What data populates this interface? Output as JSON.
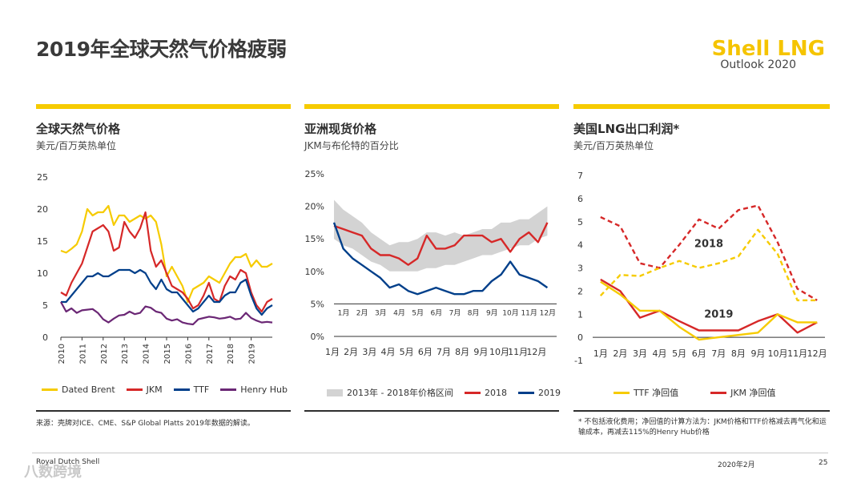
{
  "page": {
    "title": "2019年全球天然气价格疲弱",
    "logo_main": "Shell LNG",
    "logo_sub": "Outlook 2020",
    "footer_left": "Royal Dutch Shell",
    "footer_date": "2020年2月",
    "footer_page": "25",
    "watermark": "八数跨境"
  },
  "colors": {
    "yellow": "#f6cb00",
    "red": "#d62828",
    "blue": "#003f8a",
    "purple": "#6b2775",
    "gray_band": "#d3d3d3"
  },
  "chart_data": [
    {
      "id": "global",
      "type": "line",
      "title": "全球天然气价格",
      "subtitle": "美元/百万英热单位",
      "ylim": [
        0,
        25
      ],
      "yticks": [
        "0",
        "5",
        "10",
        "15",
        "20",
        "25"
      ],
      "xticks": [
        "2010",
        "2011",
        "2012",
        "2013",
        "2014",
        "2015",
        "2016",
        "2017",
        "2018",
        "2019"
      ],
      "x": [
        2010.0,
        2010.25,
        2010.5,
        2010.75,
        2011.0,
        2011.25,
        2011.5,
        2011.75,
        2012.0,
        2012.25,
        2012.5,
        2012.75,
        2013.0,
        2013.25,
        2013.5,
        2013.75,
        2014.0,
        2014.25,
        2014.5,
        2014.75,
        2015.0,
        2015.25,
        2015.5,
        2015.75,
        2016.0,
        2016.25,
        2016.5,
        2016.75,
        2017.0,
        2017.25,
        2017.5,
        2017.75,
        2018.0,
        2018.25,
        2018.5,
        2018.75,
        2019.0,
        2019.25,
        2019.5,
        2019.75,
        2020.0
      ],
      "series": [
        {
          "name": "Dated Brent",
          "color": "#f6cb00",
          "values": [
            13.5,
            13.2,
            13.8,
            14.5,
            16.5,
            20.0,
            19.0,
            19.5,
            19.5,
            20.5,
            17.5,
            19.0,
            19.0,
            18.0,
            18.5,
            19.0,
            18.5,
            19.0,
            18.0,
            14.5,
            9.5,
            11.0,
            9.5,
            8.0,
            5.5,
            7.5,
            8.0,
            8.5,
            9.5,
            9.0,
            8.5,
            10.0,
            11.5,
            12.5,
            12.5,
            13.0,
            11.0,
            12.0,
            11.0,
            11.0,
            11.5
          ]
        },
        {
          "name": "JKM",
          "color": "#d62828",
          "values": [
            7.0,
            6.5,
            8.5,
            10.0,
            11.5,
            14.0,
            16.5,
            17.0,
            17.5,
            16.5,
            13.5,
            14.0,
            18.0,
            16.5,
            15.5,
            17.0,
            19.5,
            13.5,
            11.0,
            12.0,
            10.0,
            8.0,
            7.5,
            7.0,
            6.0,
            4.5,
            5.0,
            6.5,
            8.5,
            6.0,
            5.5,
            8.0,
            9.5,
            9.0,
            10.5,
            10.0,
            7.0,
            5.0,
            4.0,
            5.5,
            6.0
          ]
        },
        {
          "name": "TTF",
          "color": "#003f8a",
          "values": [
            5.5,
            5.5,
            6.5,
            7.5,
            8.5,
            9.5,
            9.5,
            10.0,
            9.5,
            9.5,
            10.0,
            10.5,
            10.5,
            10.5,
            10.0,
            10.5,
            10.0,
            8.5,
            7.5,
            9.0,
            7.5,
            7.0,
            7.0,
            6.0,
            5.0,
            4.0,
            4.5,
            5.5,
            6.5,
            5.5,
            5.5,
            6.5,
            7.0,
            7.0,
            8.5,
            9.0,
            6.5,
            4.5,
            3.5,
            4.5,
            5.0
          ]
        },
        {
          "name": "Henry Hub",
          "color": "#6b2775",
          "values": [
            5.5,
            4.0,
            4.5,
            3.8,
            4.2,
            4.3,
            4.4,
            3.8,
            2.8,
            2.3,
            2.9,
            3.4,
            3.5,
            4.0,
            3.6,
            3.8,
            4.8,
            4.6,
            4.0,
            3.8,
            2.9,
            2.6,
            2.8,
            2.3,
            2.1,
            2.0,
            2.8,
            3.0,
            3.2,
            3.1,
            2.9,
            3.0,
            3.2,
            2.8,
            2.9,
            3.8,
            3.0,
            2.6,
            2.3,
            2.4,
            2.3
          ]
        }
      ]
    },
    {
      "id": "asia",
      "type": "line",
      "title": "亚洲现货价格",
      "subtitle": "JKM与布伦特的百分比",
      "ylim": [
        0,
        25
      ],
      "yticks": [
        "0%",
        "5%",
        "10%",
        "15%",
        "20%",
        "25%"
      ],
      "xticks_inner": [
        "1月",
        "2月",
        "3月",
        "4月",
        "5月",
        "6月",
        "7月",
        "8月",
        "9月",
        "10月",
        "11月",
        "12月"
      ],
      "xticks_outer": [
        "1月",
        "2月",
        "3月",
        "4月",
        "5月",
        "6月",
        "7月",
        "8月",
        "9月",
        "10月",
        "11月",
        "12月"
      ],
      "x": [
        1,
        1.5,
        2,
        2.5,
        3,
        3.5,
        4,
        4.5,
        5,
        5.5,
        6,
        6.5,
        7,
        7.5,
        8,
        8.5,
        9,
        9.5,
        10,
        10.5,
        11,
        11.5,
        12,
        12.5
      ],
      "band_upper": [
        21.0,
        19.5,
        18.5,
        17.5,
        16.0,
        15.0,
        14.0,
        14.5,
        14.5,
        15.0,
        16.0,
        16.0,
        15.5,
        16.0,
        15.5,
        16.0,
        16.5,
        16.5,
        17.5,
        17.5,
        18.0,
        18.0,
        19.0,
        20.0
      ],
      "band_lower": [
        15.0,
        14.0,
        13.5,
        12.5,
        11.5,
        11.0,
        10.0,
        10.0,
        10.0,
        10.0,
        10.5,
        10.5,
        11.0,
        11.0,
        11.5,
        12.0,
        12.5,
        12.5,
        13.0,
        13.5,
        14.0,
        14.0,
        15.0,
        15.5
      ],
      "series": [
        {
          "name": "2018",
          "color": "#d62828",
          "values": [
            17.0,
            16.5,
            16.0,
            15.5,
            13.5,
            12.5,
            12.5,
            12.0,
            11.0,
            12.0,
            15.5,
            13.5,
            13.5,
            14.0,
            15.5,
            15.5,
            15.5,
            14.5,
            15.0,
            13.0,
            15.0,
            16.0,
            14.5,
            17.5
          ]
        },
        {
          "name": "2019",
          "color": "#003f8a",
          "values": [
            17.5,
            13.5,
            12.0,
            11.0,
            10.0,
            9.0,
            7.5,
            8.0,
            7.0,
            6.5,
            7.0,
            7.5,
            7.0,
            6.5,
            6.5,
            7.0,
            7.0,
            8.5,
            9.5,
            11.5,
            9.5,
            9.0,
            8.5,
            7.5
          ]
        }
      ],
      "legend_band": "2013年 - 2018年价格区间"
    },
    {
      "id": "us",
      "type": "line",
      "title": "美国LNG出口利润*",
      "subtitle": "美元/百万英热单位",
      "ylim": [
        -1,
        7
      ],
      "yticks": [
        "-1",
        "0",
        "1",
        "2",
        "3",
        "4",
        "5",
        "6",
        "7"
      ],
      "xticks": [
        "1月",
        "2月",
        "3月",
        "4月",
        "5月",
        "6月",
        "7月",
        "8月",
        "9月",
        "10月",
        "11月",
        "12月"
      ],
      "x": [
        1,
        2,
        3,
        4,
        5,
        6,
        7,
        8,
        9,
        10,
        11,
        12
      ],
      "series": [
        {
          "name": "JKM 2018",
          "color": "#d62828",
          "dash": true,
          "values": [
            5.2,
            4.8,
            3.2,
            3.0,
            4.0,
            5.1,
            4.7,
            5.5,
            5.7,
            4.1,
            2.1,
            1.6
          ]
        },
        {
          "name": "TTF 2018",
          "color": "#f6cb00",
          "dash": true,
          "values": [
            1.8,
            2.7,
            2.65,
            3.0,
            3.3,
            3.0,
            3.2,
            3.5,
            4.65,
            3.6,
            1.6,
            1.6
          ]
        },
        {
          "name": "JKM 2019",
          "color": "#d62828",
          "dash": false,
          "values": [
            2.5,
            2.0,
            0.85,
            1.15,
            0.7,
            0.3,
            0.3,
            0.3,
            0.7,
            1.0,
            0.2,
            0.65
          ]
        },
        {
          "name": "TTF 2019",
          "color": "#f6cb00",
          "dash": false,
          "values": [
            2.4,
            1.85,
            1.15,
            1.15,
            0.45,
            -0.1,
            0.0,
            0.1,
            0.2,
            1.0,
            0.65,
            0.65
          ]
        }
      ],
      "annotation_2018": "2018",
      "annotation_2019": "2019",
      "legend": [
        "TTF 净回值",
        "JKM 净回值"
      ]
    }
  ],
  "footnotes": {
    "source": "来源：壳牌对ICE、CME、S&P Global Platts 2019年数据的解读。",
    "us_note": "* 不包括液化费用；净回值的计算方法为：JKM价格和TTF价格减去再气化和运输成本，再减去115%的Henry Hub价格"
  }
}
